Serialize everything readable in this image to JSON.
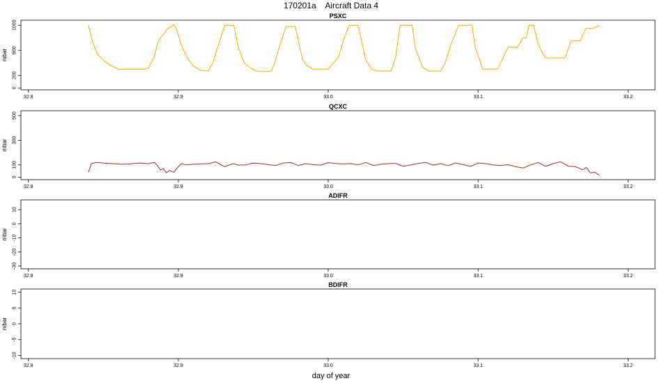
{
  "title": "170201a    Aircraft Data 4",
  "xlabel": "day of year",
  "chart_data": [
    {
      "type": "line",
      "title": "PSXC",
      "ylabel": "mbar",
      "xlim": [
        32.795,
        33.218
      ],
      "ylim": [
        -30,
        1080
      ],
      "xticks": [
        32.8,
        32.9,
        33.0,
        33.1,
        33.2
      ],
      "xtick_labels": [
        "32.8",
        "32.9",
        "33.0",
        "33.1",
        "33.2"
      ],
      "yticks": [
        0,
        200,
        600,
        1000
      ],
      "ytick_labels": [
        "0",
        "200",
        "600",
        "1000"
      ],
      "grid": false,
      "series": [
        {
          "color": "#FFA500",
          "x": [
            32.84,
            32.843,
            32.846,
            32.85,
            32.855,
            32.86,
            32.863,
            32.87,
            32.878,
            32.88,
            32.884,
            32.886,
            32.888,
            32.89,
            32.893,
            32.895,
            32.897,
            32.899,
            32.902,
            32.906,
            32.91,
            32.915,
            32.92,
            32.923,
            32.927,
            32.931,
            32.934,
            32.937,
            32.94,
            32.944,
            32.948,
            32.952,
            32.957,
            32.962,
            32.964,
            32.968,
            32.972,
            32.976,
            32.978,
            32.981,
            32.983,
            32.986,
            32.99,
            32.995,
            33.0,
            33.007,
            33.01,
            33.014,
            33.018,
            33.02,
            33.023,
            33.025,
            33.029,
            33.033,
            33.038,
            33.042,
            33.045,
            33.048,
            33.052,
            33.056,
            33.058,
            33.061,
            33.063,
            33.067,
            33.071,
            33.075,
            33.078,
            33.082,
            33.087,
            33.092,
            33.096,
            33.098,
            33.101,
            33.103,
            33.107,
            33.11,
            33.113,
            33.12,
            33.124,
            33.126,
            33.13,
            33.132,
            33.134,
            33.137,
            33.14,
            33.143,
            33.145,
            33.148,
            33.152,
            33.155,
            33.158,
            33.162,
            33.165,
            33.168,
            33.172,
            33.175,
            33.178,
            33.181
          ],
          "y": [
            1000,
            720,
            540,
            440,
            360,
            300,
            300,
            300,
            300,
            320,
            500,
            700,
            800,
            850,
            950,
            970,
            1010,
            930,
            680,
            480,
            350,
            280,
            270,
            400,
            700,
            1000,
            1000,
            1000,
            650,
            400,
            320,
            270,
            260,
            270,
            380,
            700,
            980,
            980,
            980,
            650,
            450,
            350,
            300,
            300,
            300,
            500,
            750,
            1000,
            1000,
            1000,
            670,
            450,
            300,
            270,
            270,
            270,
            500,
            1000,
            1000,
            1000,
            650,
            450,
            330,
            270,
            270,
            270,
            400,
            700,
            1000,
            1000,
            1000,
            650,
            450,
            300,
            300,
            300,
            300,
            650,
            650,
            640,
            800,
            800,
            1000,
            1000,
            700,
            550,
            480,
            480,
            480,
            480,
            480,
            750,
            750,
            750,
            950,
            950,
            960,
            1000
          ]
        }
      ]
    },
    {
      "type": "line",
      "title": "QCXC",
      "ylabel": "mbar",
      "xlim": [
        32.795,
        33.218
      ],
      "ylim": [
        -20,
        540
      ],
      "xticks": [
        32.8,
        32.9,
        33.0,
        33.1,
        33.2
      ],
      "xtick_labels": [
        "32.8",
        "32.9",
        "33.0",
        "33.1",
        "33.2"
      ],
      "yticks": [
        0,
        100,
        300,
        500
      ],
      "ytick_labels": [
        "0",
        "100",
        "300",
        "500"
      ],
      "grid": false,
      "series": [
        {
          "color": "#A52A2A",
          "x": [
            32.84,
            32.842,
            32.845,
            32.85,
            32.856,
            32.862,
            32.868,
            32.874,
            32.88,
            32.884,
            32.886,
            32.888,
            32.89,
            32.892,
            32.894,
            32.897,
            32.9,
            32.902,
            32.905,
            32.91,
            32.915,
            32.92,
            32.925,
            32.928,
            32.931,
            32.934,
            32.937,
            32.94,
            32.945,
            32.95,
            32.955,
            32.96,
            32.965,
            32.97,
            32.975,
            32.98,
            32.985,
            32.99,
            32.995,
            33.0,
            33.005,
            33.01,
            33.015,
            33.02,
            33.025,
            33.03,
            33.035,
            33.04,
            33.045,
            33.05,
            33.055,
            33.06,
            33.065,
            33.07,
            33.075,
            33.08,
            33.085,
            33.09,
            33.095,
            33.1,
            33.105,
            33.11,
            33.115,
            33.12,
            33.125,
            33.13,
            33.135,
            33.14,
            33.145,
            33.15,
            33.155,
            33.16,
            33.165,
            33.17,
            33.172,
            33.175,
            33.178,
            33.181
          ],
          "y": [
            40,
            110,
            120,
            115,
            110,
            105,
            108,
            115,
            110,
            120,
            95,
            60,
            70,
            35,
            55,
            40,
            85,
            110,
            100,
            105,
            108,
            110,
            125,
            105,
            85,
            100,
            110,
            98,
            100,
            115,
            110,
            102,
            95,
            115,
            120,
            95,
            110,
            102,
            98,
            118,
            112,
            108,
            110,
            100,
            120,
            95,
            105,
            110,
            112,
            88,
            100,
            112,
            120,
            98,
            110,
            95,
            115,
            102,
            88,
            115,
            110,
            100,
            95,
            102,
            85,
            75,
            100,
            120,
            88,
            110,
            125,
            90,
            85,
            60,
            80,
            35,
            40,
            15
          ]
        }
      ]
    },
    {
      "type": "line",
      "title": "ADIFR",
      "ylabel": "mbar",
      "xlim": [
        32.795,
        33.218
      ],
      "ylim": [
        -32,
        17
      ],
      "xticks": [
        32.8,
        32.9,
        33.0,
        33.1,
        33.2
      ],
      "xtick_labels": [
        "32.8",
        "32.9",
        "33.0",
        "33.1",
        "33.2"
      ],
      "yticks": [
        -30,
        -20,
        -10,
        0,
        10
      ],
      "ytick_labels": [
        "-30",
        "-20",
        "-10",
        "0",
        "10"
      ],
      "grid": false,
      "series": []
    },
    {
      "type": "line",
      "title": "BDIFR",
      "ylabel": "mbar",
      "xlim": [
        32.795,
        33.218
      ],
      "ylim": [
        -11,
        11
      ],
      "xticks": [
        32.8,
        32.9,
        33.0,
        33.1,
        33.2
      ],
      "xtick_labels": [
        "32.8",
        "32.9",
        "33.0",
        "33.1",
        "33.2"
      ],
      "yticks": [
        -10,
        -5,
        0,
        5,
        10
      ],
      "ytick_labels": [
        "-10",
        "-5",
        "0",
        "5",
        "10"
      ],
      "grid": false,
      "series": []
    }
  ]
}
